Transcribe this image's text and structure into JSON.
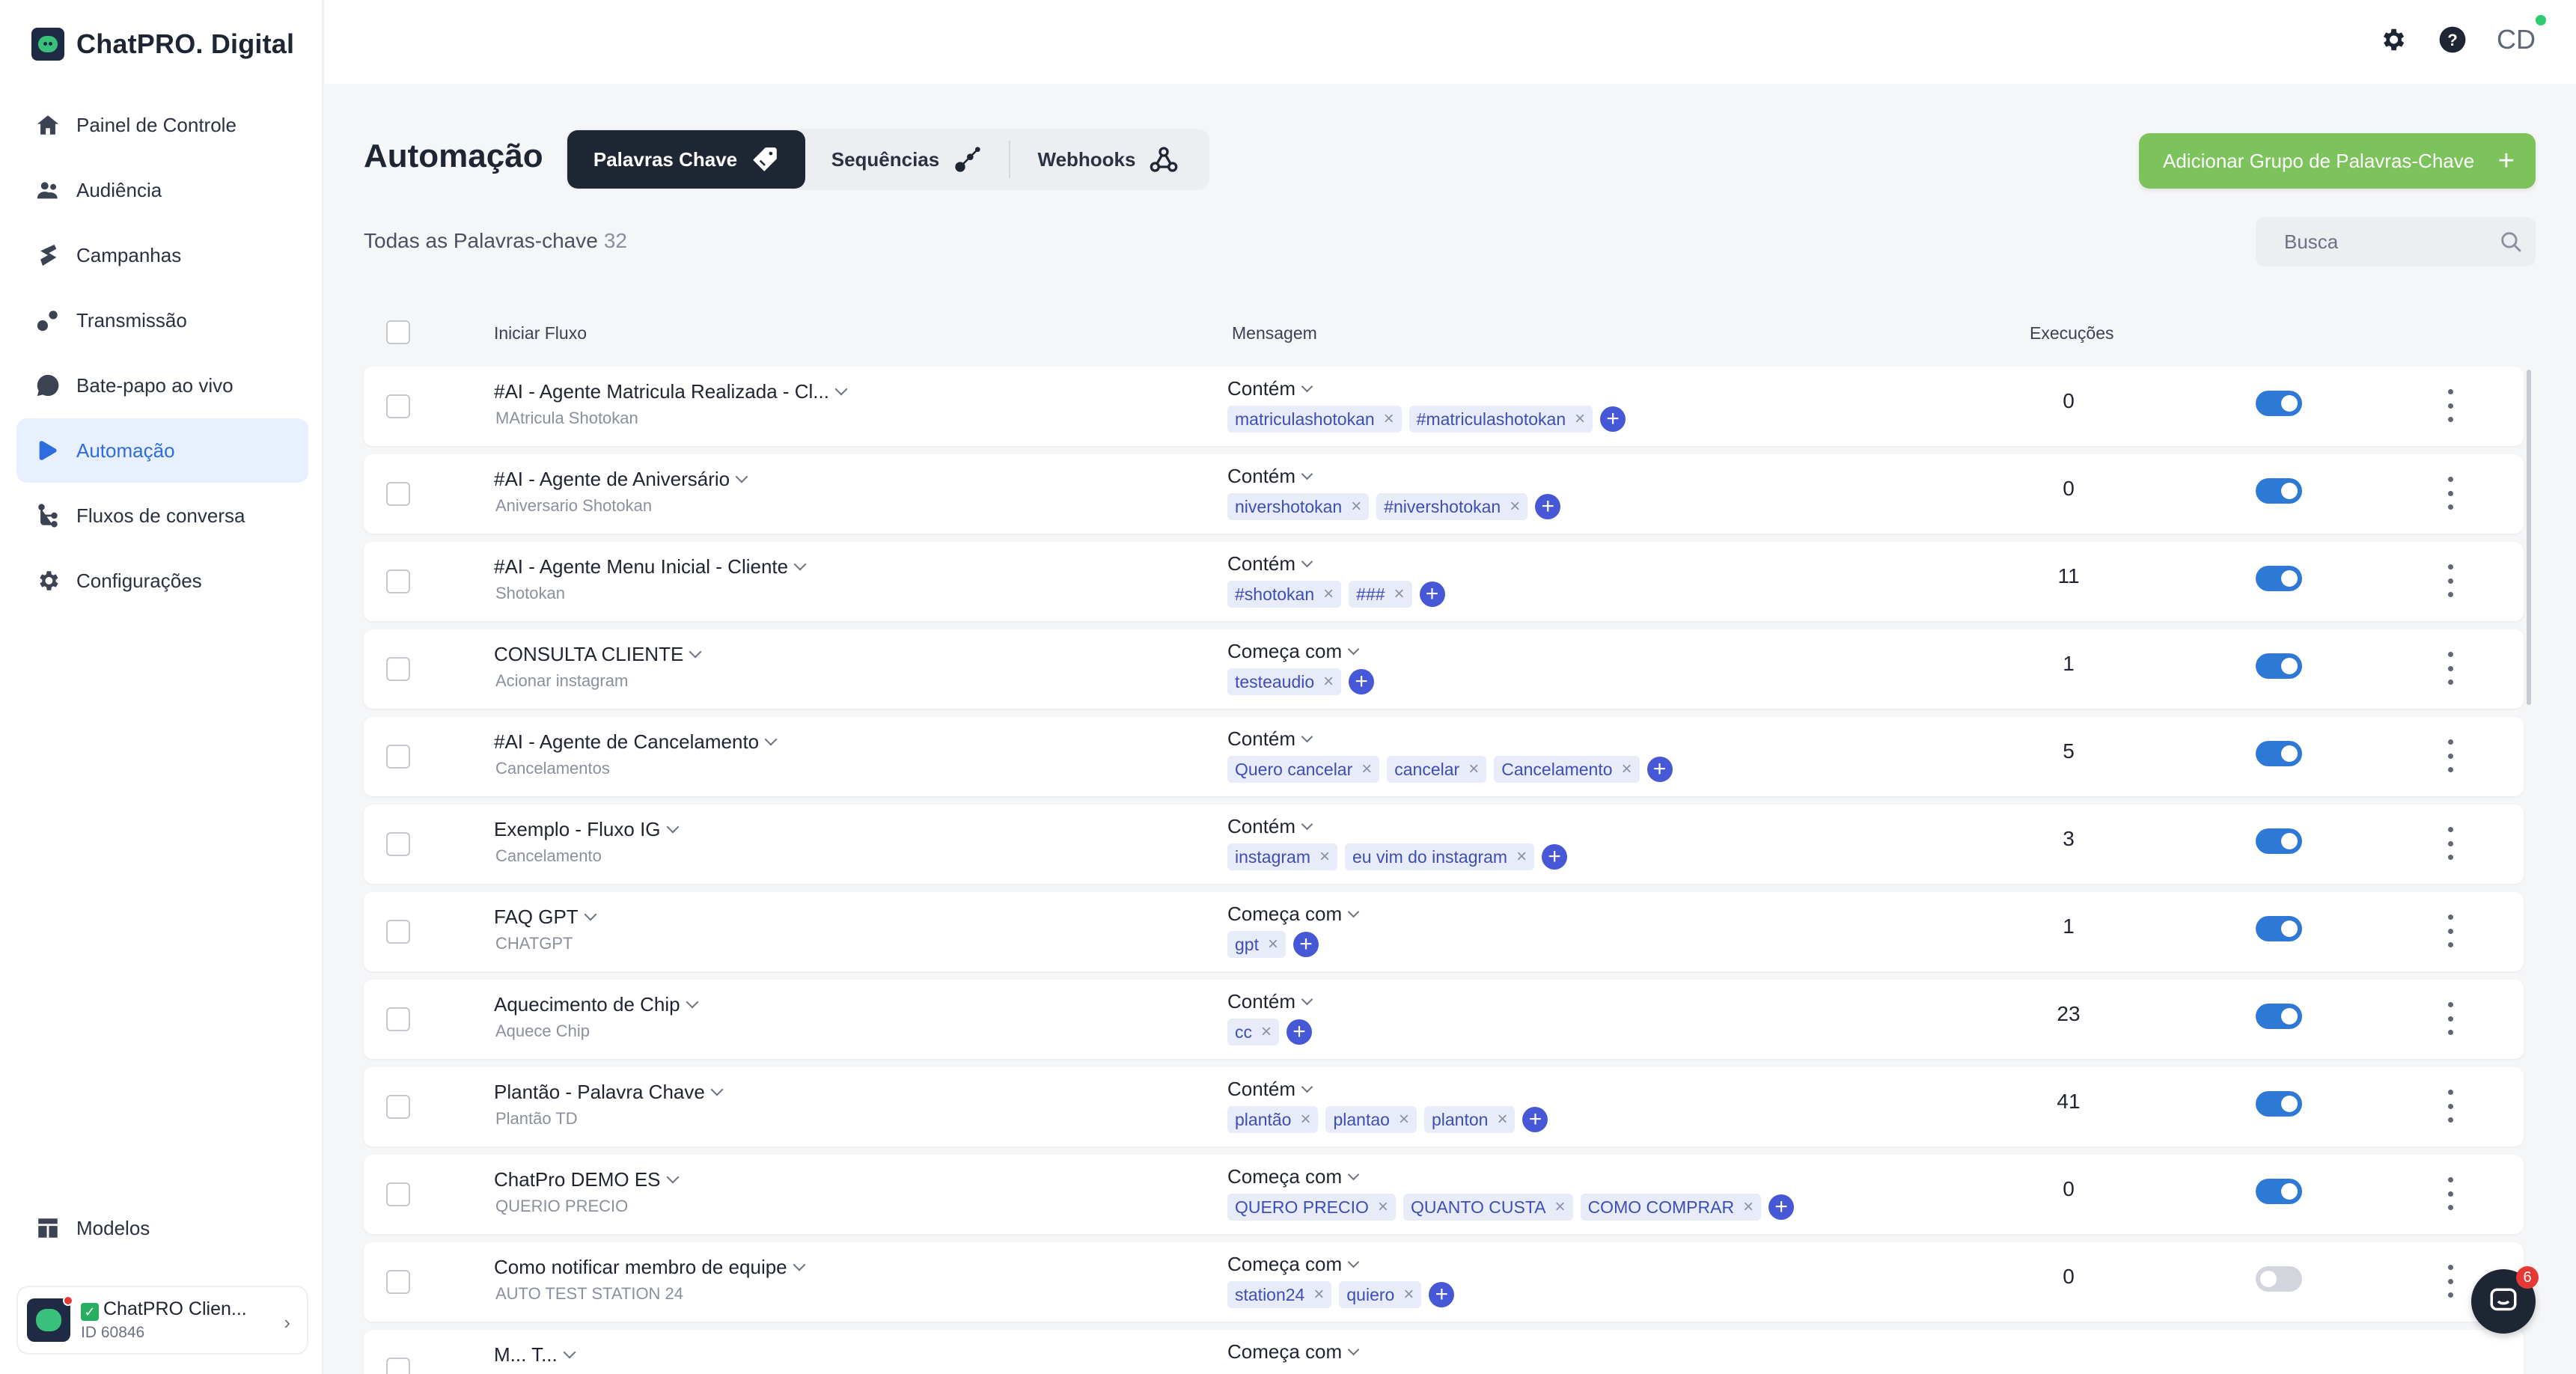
{
  "brand": {
    "name": "ChatPRO. Digital"
  },
  "nav": [
    {
      "label": "Painel de Controle",
      "icon": "home-icon",
      "active": false
    },
    {
      "label": "Audiência",
      "icon": "users-icon",
      "active": false
    },
    {
      "label": "Campanhas",
      "icon": "campaigns-icon",
      "active": false
    },
    {
      "label": "Transmissão",
      "icon": "broadcast-icon",
      "active": false
    },
    {
      "label": "Bate-papo ao vivo",
      "icon": "chat-icon",
      "active": false
    },
    {
      "label": "Automação",
      "icon": "automation-icon",
      "active": true
    },
    {
      "label": "Fluxos de conversa",
      "icon": "flows-icon",
      "active": false
    },
    {
      "label": "Configurações",
      "icon": "gear-icon",
      "active": false
    }
  ],
  "nav_bottom": {
    "label": "Modelos",
    "icon": "templates-icon"
  },
  "account": {
    "name": "ChatPRO Clien...",
    "id": "ID 60846"
  },
  "topbar": {
    "user_initials": "CD"
  },
  "page": {
    "title": "Automação",
    "tabs": [
      {
        "label": "Palavras Chave",
        "icon": "tag-icon",
        "active": true
      },
      {
        "label": "Sequências",
        "icon": "sequence-icon",
        "active": false
      },
      {
        "label": "Webhooks",
        "icon": "webhook-icon",
        "active": false
      }
    ],
    "add_button": "Adicionar Grupo de Palavras-Chave",
    "all_keywords_label": "Todas as Palavras-chave",
    "all_keywords_count": "32",
    "search_placeholder": "Busca"
  },
  "table": {
    "columns": {
      "flow": "Iniciar Fluxo",
      "message": "Mensagem",
      "executions": "Execuções"
    },
    "rows": [
      {
        "title": "#AI - Agente Matricula Realizada - Cl...",
        "subtitle": "MAtricula Shotokan",
        "match": "Contém",
        "keywords": [
          "matriculashotokan",
          "#matriculashotokan"
        ],
        "executions": "0",
        "enabled": true
      },
      {
        "title": "#AI - Agente de Aniversário",
        "subtitle": "Aniversario Shotokan",
        "match": "Contém",
        "keywords": [
          "nivershotokan",
          "#nivershotokan"
        ],
        "executions": "0",
        "enabled": true
      },
      {
        "title": "#AI - Agente Menu Inicial - Cliente",
        "subtitle": "Shotokan",
        "match": "Contém",
        "keywords": [
          "#shotokan",
          "###"
        ],
        "executions": "11",
        "enabled": true
      },
      {
        "title": "CONSULTA CLIENTE",
        "subtitle": "Acionar instagram",
        "match": "Começa com",
        "keywords": [
          "testeaudio"
        ],
        "executions": "1",
        "enabled": true
      },
      {
        "title": "#AI - Agente de Cancelamento",
        "subtitle": "Cancelamentos",
        "match": "Contém",
        "keywords": [
          "Quero cancelar",
          "cancelar",
          "Cancelamento"
        ],
        "executions": "5",
        "enabled": true
      },
      {
        "title": "Exemplo - Fluxo IG",
        "subtitle": "Cancelamento",
        "match": "Contém",
        "keywords": [
          "instagram",
          "eu vim do instagram"
        ],
        "executions": "3",
        "enabled": true
      },
      {
        "title": "FAQ GPT",
        "subtitle": "CHATGPT",
        "match": "Começa com",
        "keywords": [
          "gpt"
        ],
        "executions": "1",
        "enabled": true
      },
      {
        "title": "Aquecimento de Chip",
        "subtitle": "Aquece Chip",
        "match": "Contém",
        "keywords": [
          "cc"
        ],
        "executions": "23",
        "enabled": true
      },
      {
        "title": "Plantão - Palavra Chave",
        "subtitle": "Plantão TD",
        "match": "Contém",
        "keywords": [
          "plantão",
          "plantao",
          "planton"
        ],
        "executions": "41",
        "enabled": true
      },
      {
        "title": "ChatPro DEMO ES",
        "subtitle": "QUERIO PRECIO",
        "match": "Começa com",
        "keywords": [
          "QUERO PRECIO",
          "QUANTO CUSTA",
          "COMO COMPRAR"
        ],
        "executions": "0",
        "enabled": true
      },
      {
        "title": "Como notificar membro de equipe",
        "subtitle": "AUTO TEST STATION 24",
        "match": "Começa com",
        "keywords": [
          "station24",
          "quiero"
        ],
        "executions": "0",
        "enabled": false
      },
      {
        "title": "M... T...",
        "subtitle": "",
        "match": "Começa com",
        "keywords": [],
        "executions": "",
        "enabled": true,
        "partial": true
      }
    ]
  },
  "chat_widget": {
    "notification_count": "6"
  }
}
